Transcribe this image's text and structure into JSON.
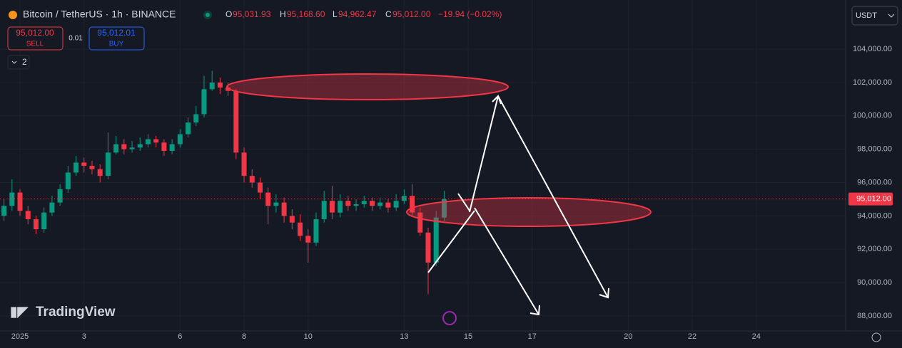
{
  "header": {
    "symbol": "Bitcoin / TetherUS · 1h · BINANCE",
    "o_label": "O",
    "o": "95,031.93",
    "h_label": "H",
    "h": "95,168.60",
    "l_label": "L",
    "l": "94,962.47",
    "c_label": "C",
    "c": "95,012.00",
    "change": "−19.94 (−0.02%)",
    "sell_price": "95,012.00",
    "sell": "SELL",
    "spread": "0.01",
    "buy_price": "95,012.01",
    "buy": "BUY",
    "indicators": "2",
    "currency": "USDT",
    "logo": "TradingView",
    "price_label": "95,012.00"
  },
  "chart_data": {
    "type": "candlestick",
    "up_color": "#089981",
    "down_color": "#f23645",
    "grid": true,
    "x": [
      -12,
      -6,
      0,
      6,
      12,
      18,
      24,
      30,
      36,
      42,
      48,
      54,
      60,
      66,
      72,
      78,
      84,
      90,
      96,
      102,
      108,
      114,
      120,
      126,
      132,
      138,
      144,
      150,
      156,
      162,
      168,
      174,
      180,
      186,
      192,
      198,
      204,
      210,
      216,
      222,
      228,
      234,
      240,
      246,
      252,
      258,
      264,
      270,
      276,
      282,
      288,
      294,
      300,
      306,
      312,
      318
    ],
    "open": [
      94000,
      94600,
      95400,
      94300,
      93800,
      93200,
      94200,
      94800,
      95600,
      96600,
      97200,
      97000,
      96800,
      96400,
      97800,
      98300,
      98000,
      98100,
      98300,
      98600,
      98400,
      97900,
      98300,
      98900,
      99600,
      100100,
      101600,
      102000,
      101700,
      101500,
      97800,
      96400,
      96000,
      95400,
      94600,
      94800,
      94000,
      93600,
      92800,
      92400,
      93800,
      94900,
      94200,
      94900,
      94600,
      94700,
      94900,
      94600,
      94800,
      94500,
      94900,
      95200,
      94200,
      93000,
      91200,
      93900
    ],
    "high": [
      95000,
      96200,
      95600,
      94600,
      94000,
      94500,
      95200,
      95900,
      97000,
      97600,
      97500,
      97300,
      97100,
      99000,
      98800,
      98600,
      98500,
      98700,
      98900,
      98800,
      98600,
      98600,
      99200,
      99900,
      100600,
      102400,
      102700,
      102300,
      102000,
      101600,
      98100,
      96800,
      96300,
      95700,
      95300,
      95100,
      94400,
      94100,
      93200,
      94200,
      95500,
      95800,
      95300,
      95200,
      95000,
      95200,
      95100,
      95100,
      95000,
      95300,
      95600,
      95900,
      94500,
      93300,
      94300,
      95500
    ],
    "low": [
      93700,
      94300,
      94000,
      93500,
      92900,
      93000,
      94000,
      94600,
      95400,
      96400,
      96600,
      96500,
      96000,
      96200,
      97700,
      97700,
      97800,
      97900,
      98100,
      98100,
      97600,
      97700,
      98100,
      98700,
      99400,
      99900,
      101500,
      101300,
      101200,
      97400,
      96000,
      95700,
      95000,
      93500,
      94200,
      93600,
      93200,
      92500,
      91200,
      92200,
      93600,
      93800,
      93900,
      94300,
      94300,
      94500,
      94300,
      94400,
      94200,
      94300,
      94700,
      94000,
      92800,
      89300,
      91000,
      93700
    ],
    "close": [
      94600,
      95400,
      94300,
      93800,
      93200,
      94200,
      94800,
      95600,
      96600,
      97200,
      97000,
      96800,
      96400,
      97800,
      98300,
      98000,
      98100,
      98300,
      98600,
      98400,
      97900,
      98300,
      98900,
      99600,
      100100,
      101600,
      102000,
      101700,
      101500,
      97800,
      96400,
      96000,
      95400,
      94600,
      94800,
      94000,
      93600,
      92800,
      92400,
      93800,
      94900,
      94200,
      94900,
      94600,
      94700,
      94900,
      94600,
      94800,
      94500,
      94900,
      95200,
      94200,
      93000,
      91200,
      93900,
      95012
    ],
    "xlim": [
      -15,
      619
    ],
    "xticks": [
      {
        "value": 0,
        "label": "2025"
      },
      {
        "value": 48,
        "label": "3"
      },
      {
        "value": 120,
        "label": "6"
      },
      {
        "value": 168,
        "label": "8"
      },
      {
        "value": 216,
        "label": "10"
      },
      {
        "value": 288,
        "label": "13"
      },
      {
        "value": 336,
        "label": "15"
      },
      {
        "value": 384,
        "label": "17"
      },
      {
        "value": 456,
        "label": "20"
      },
      {
        "value": 504,
        "label": "22"
      },
      {
        "value": 552,
        "label": "24"
      }
    ],
    "ylim": [
      87100,
      106950
    ],
    "yticks": [
      {
        "value": 88000,
        "label": "88,000.00"
      },
      {
        "value": 90000,
        "label": "90,000.00"
      },
      {
        "value": 92000,
        "label": "92,000.00"
      },
      {
        "value": 94000,
        "label": "94,000.00"
      },
      {
        "value": 96000,
        "label": "96,000.00"
      },
      {
        "value": 98000,
        "label": "98,000.00"
      },
      {
        "value": 100000,
        "label": "100,000.00"
      },
      {
        "value": 102000,
        "label": "102,000.00"
      },
      {
        "value": 104000,
        "label": "104,000.00"
      }
    ]
  }
}
